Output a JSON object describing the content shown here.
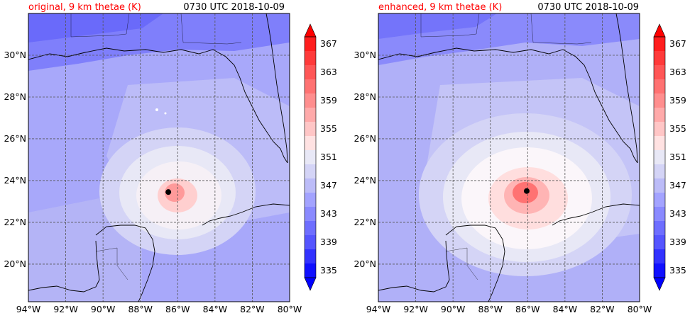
{
  "panels": [
    {
      "title_left": "original, 9 km thetae (K)",
      "title_right": "0730 UTC 2018-10-09",
      "storm_center": {
        "lon": -86.5,
        "lat": 23.45
      }
    },
    {
      "title_left": "enhanced, 9 km thetae (K)",
      "title_right": "0730 UTC 2018-10-09",
      "storm_center": {
        "lon": -86.05,
        "lat": 23.5
      }
    }
  ],
  "map_extent": {
    "lon": [
      -94,
      -80
    ],
    "lat": [
      18.2,
      32.0
    ]
  },
  "lon_ticks": [
    {
      "value": -94,
      "label": "94°W"
    },
    {
      "value": -92,
      "label": "92°W"
    },
    {
      "value": -90,
      "label": "90°W"
    },
    {
      "value": -88,
      "label": "88°W"
    },
    {
      "value": -86,
      "label": "86°W"
    },
    {
      "value": -84,
      "label": "84°W"
    },
    {
      "value": -82,
      "label": "82°W"
    },
    {
      "value": -80,
      "label": "80°W"
    }
  ],
  "lat_ticks": [
    {
      "value": 20,
      "label": "20°N"
    },
    {
      "value": 22,
      "label": "22°N"
    },
    {
      "value": 24,
      "label": "24°N"
    },
    {
      "value": 26,
      "label": "26°N"
    },
    {
      "value": 28,
      "label": "28°N"
    },
    {
      "value": 30,
      "label": "30°N"
    }
  ],
  "colorbar": {
    "range": [
      335,
      369
    ],
    "levels": [
      335,
      337,
      339,
      341,
      343,
      345,
      347,
      349,
      351,
      353,
      355,
      357,
      359,
      361,
      363,
      365,
      367,
      369
    ],
    "colors": [
      "#1010ff",
      "#3232ff",
      "#5555ff",
      "#6e6eff",
      "#8a8aff",
      "#a3a3ff",
      "#bcbcf8",
      "#d4d4f6",
      "#e8e8f6",
      "#ffe2e2",
      "#ffc6c6",
      "#ffaaaa",
      "#ff8e8e",
      "#ff7272",
      "#ff5656",
      "#ff3a3a",
      "#ff1e1e"
    ],
    "under_color": "#0000ff",
    "over_color": "#ff0000",
    "tick_labels": [
      "335",
      "339",
      "343",
      "347",
      "351",
      "355",
      "359",
      "363",
      "367"
    ],
    "tick_values": [
      335,
      339,
      343,
      347,
      351,
      355,
      359,
      363,
      367
    ]
  }
}
